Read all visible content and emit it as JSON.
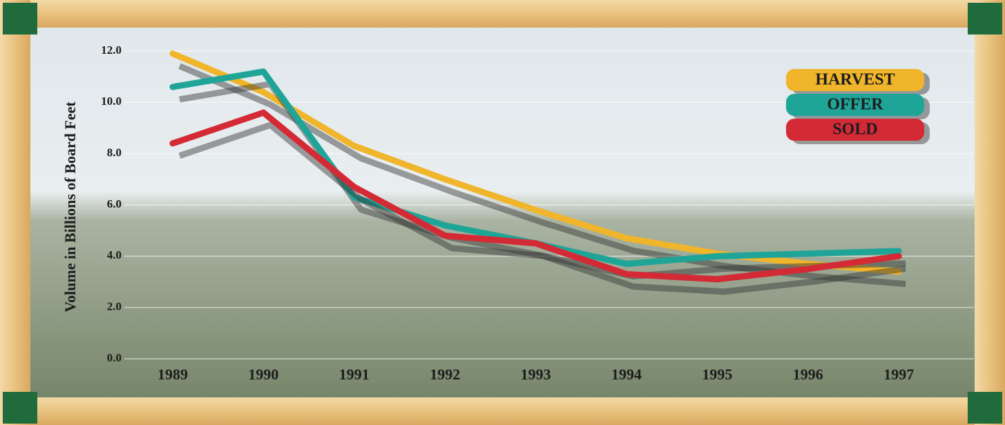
{
  "chart_data": {
    "type": "line",
    "y_label": "Volume in Billions of Board Feet",
    "categories": [
      "1989",
      "1990",
      "1991",
      "1992",
      "1993",
      "1994",
      "1995",
      "1996",
      "1997"
    ],
    "series": [
      {
        "name": "HARVEST",
        "color": "#f0b52a",
        "values": [
          11.9,
          10.4,
          8.3,
          7.0,
          5.8,
          4.7,
          4.1,
          3.7,
          3.4
        ]
      },
      {
        "name": "OFFER",
        "color": "#1fa598",
        "values": [
          10.6,
          11.2,
          6.3,
          5.2,
          4.5,
          3.7,
          4.0,
          4.1,
          4.2
        ]
      },
      {
        "name": "SOLD",
        "color": "#d42a35",
        "values": [
          8.4,
          9.6,
          6.7,
          4.8,
          4.5,
          3.3,
          3.1,
          3.5,
          4.0
        ]
      }
    ],
    "ylim": [
      0,
      12
    ],
    "yticks": [
      {
        "value": 0,
        "label": "0.0"
      },
      {
        "value": 2,
        "label": "2.0"
      },
      {
        "value": 4,
        "label": "4.0"
      },
      {
        "value": 6,
        "label": "6.0"
      },
      {
        "value": 8,
        "label": "8.0"
      },
      {
        "value": 10,
        "label": "10.0"
      },
      {
        "value": 12,
        "label": "12.0"
      }
    ],
    "grid": true
  }
}
